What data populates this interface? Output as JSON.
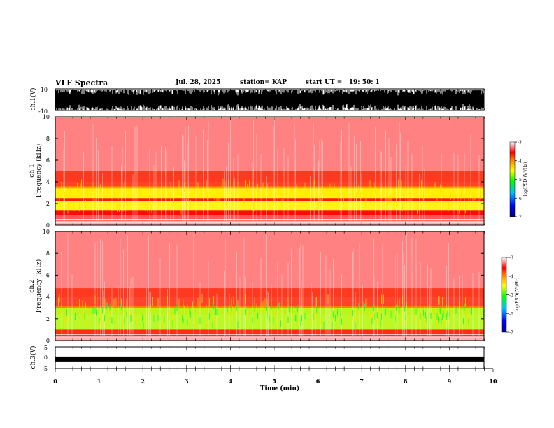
{
  "header": {
    "title": "VLF Spectra",
    "date": "Jul. 28, 2025",
    "station": "station= KAP",
    "start": "start UT =   19: 50: 1"
  },
  "chart_data": [
    {
      "type": "line",
      "name": "ch1-waveform",
      "ylabel": "ch.1(V)",
      "ylim": [
        -10,
        10
      ],
      "yticks": [
        "10",
        "-10"
      ],
      "xlim": [
        0,
        10
      ],
      "description_values": {
        "amplitude_range": [
          -10,
          10
        ]
      }
    },
    {
      "type": "heatmap",
      "name": "ch1-spectrogram",
      "ylabel": "ch.1\nFrequency (kHz)",
      "ylabel_line1": "ch.1",
      "ylabel_line2": "Frequency (kHz)",
      "ylim": [
        0,
        10
      ],
      "yticks": [
        0,
        2,
        4,
        6,
        8,
        10
      ],
      "xlim": [
        0,
        10
      ],
      "data_end_min": 9.8,
      "colorbar": {
        "label": "log(PSD)(V²/Hz)",
        "range": [
          -7,
          -3
        ],
        "ticks": [
          "-3",
          "-4",
          "-5",
          "-6",
          "-7"
        ]
      }
    },
    {
      "type": "heatmap",
      "name": "ch2-spectrogram",
      "ylabel_line1": "ch.2",
      "ylabel_line2": "Frequency (kHz)",
      "ylim": [
        0,
        10
      ],
      "yticks": [
        0,
        2,
        4,
        6,
        8,
        10
      ],
      "xlim": [
        0,
        10
      ],
      "data_end_min": 9.8,
      "colorbar": {
        "label": "log(PSD)(V²/Hz)",
        "range": [
          -7,
          -3
        ],
        "ticks": [
          "-3",
          "-4",
          "-5",
          "-6",
          "-7"
        ]
      }
    },
    {
      "type": "line",
      "name": "ch3-waveform",
      "ylabel": "ch.3(V)",
      "ylim": [
        -5,
        5
      ],
      "yticks": [
        "5",
        "0",
        "-5"
      ],
      "xlim": [
        0,
        10
      ],
      "xlabel": "Time (min)",
      "xticks": [
        "0",
        "1",
        "2",
        "3",
        "4",
        "5",
        "6",
        "7",
        "8",
        "9",
        "10"
      ],
      "level": -0.6
    }
  ],
  "colors": {
    "background": "#ffffff",
    "axis": "#000000",
    "colormap": [
      "#000080",
      "#0000ff",
      "#00c0ff",
      "#00ff00",
      "#ffff00",
      "#ff8000",
      "#ff0000",
      "#ffffff"
    ]
  }
}
